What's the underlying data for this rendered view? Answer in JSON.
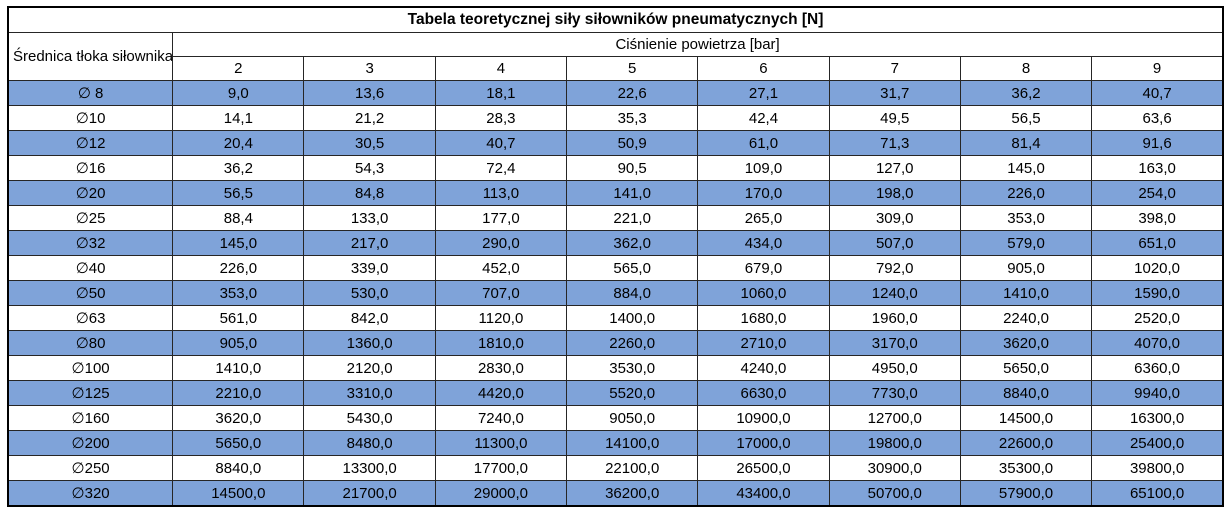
{
  "table": {
    "title": "Tabela teoretycznej siły siłowników pneumatycznych [N]",
    "diameter_header": "Średnica tłoka siłownika",
    "pressure_group_header": "Ciśnienie powietrza [bar]",
    "pressures": [
      "2",
      "3",
      "4",
      "5",
      "6",
      "7",
      "8",
      "9"
    ],
    "rows": [
      {
        "diameter": "∅ 8",
        "values": [
          "9,0",
          "13,6",
          "18,1",
          "22,6",
          "27,1",
          "31,7",
          "36,2",
          "40,7"
        ]
      },
      {
        "diameter": "∅10",
        "values": [
          "14,1",
          "21,2",
          "28,3",
          "35,3",
          "42,4",
          "49,5",
          "56,5",
          "63,6"
        ]
      },
      {
        "diameter": "∅12",
        "values": [
          "20,4",
          "30,5",
          "40,7",
          "50,9",
          "61,0",
          "71,3",
          "81,4",
          "91,6"
        ]
      },
      {
        "diameter": "∅16",
        "values": [
          "36,2",
          "54,3",
          "72,4",
          "90,5",
          "109,0",
          "127,0",
          "145,0",
          "163,0"
        ]
      },
      {
        "diameter": "∅20",
        "values": [
          "56,5",
          "84,8",
          "113,0",
          "141,0",
          "170,0",
          "198,0",
          "226,0",
          "254,0"
        ]
      },
      {
        "diameter": "∅25",
        "values": [
          "88,4",
          "133,0",
          "177,0",
          "221,0",
          "265,0",
          "309,0",
          "353,0",
          "398,0"
        ]
      },
      {
        "diameter": "∅32",
        "values": [
          "145,0",
          "217,0",
          "290,0",
          "362,0",
          "434,0",
          "507,0",
          "579,0",
          "651,0"
        ]
      },
      {
        "diameter": "∅40",
        "values": [
          "226,0",
          "339,0",
          "452,0",
          "565,0",
          "679,0",
          "792,0",
          "905,0",
          "1020,0"
        ]
      },
      {
        "diameter": "∅50",
        "values": [
          "353,0",
          "530,0",
          "707,0",
          "884,0",
          "1060,0",
          "1240,0",
          "1410,0",
          "1590,0"
        ]
      },
      {
        "diameter": "∅63",
        "values": [
          "561,0",
          "842,0",
          "1120,0",
          "1400,0",
          "1680,0",
          "1960,0",
          "2240,0",
          "2520,0"
        ]
      },
      {
        "diameter": "∅80",
        "values": [
          "905,0",
          "1360,0",
          "1810,0",
          "2260,0",
          "2710,0",
          "3170,0",
          "3620,0",
          "4070,0"
        ]
      },
      {
        "diameter": "∅100",
        "values": [
          "1410,0",
          "2120,0",
          "2830,0",
          "3530,0",
          "4240,0",
          "4950,0",
          "5650,0",
          "6360,0"
        ]
      },
      {
        "diameter": "∅125",
        "values": [
          "2210,0",
          "3310,0",
          "4420,0",
          "5520,0",
          "6630,0",
          "7730,0",
          "8840,0",
          "9940,0"
        ]
      },
      {
        "diameter": "∅160",
        "values": [
          "3620,0",
          "5430,0",
          "7240,0",
          "9050,0",
          "10900,0",
          "12700,0",
          "14500,0",
          "16300,0"
        ]
      },
      {
        "diameter": "∅200",
        "values": [
          "5650,0",
          "8480,0",
          "11300,0",
          "14100,0",
          "17000,0",
          "19800,0",
          "22600,0",
          "25400,0"
        ]
      },
      {
        "diameter": "∅250",
        "values": [
          "8840,0",
          "13300,0",
          "17700,0",
          "22100,0",
          "26500,0",
          "30900,0",
          "35300,0",
          "39800,0"
        ]
      },
      {
        "diameter": "∅320",
        "values": [
          "14500,0",
          "21700,0",
          "29000,0",
          "36200,0",
          "43400,0",
          "50700,0",
          "57900,0",
          "65100,0"
        ]
      }
    ],
    "colors": {
      "row_highlight": "#7FA3D9",
      "border": "#262626",
      "outer_border": "#000000",
      "text": "#000000"
    }
  }
}
